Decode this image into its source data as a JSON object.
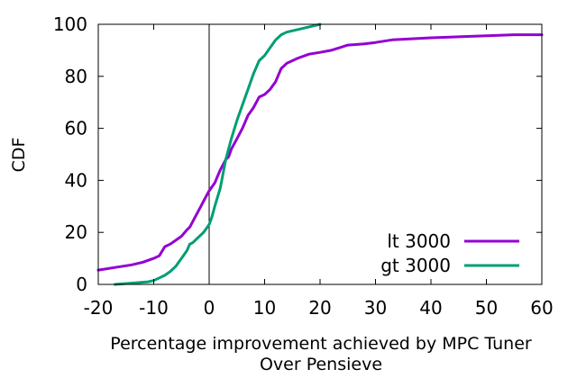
{
  "chart_data": {
    "type": "line",
    "xlabel": "Percentage improvement achieved by MPC Tuner",
    "xlabel2": "Over Pensieve",
    "ylabel": "CDF",
    "xlim": [
      -20,
      60
    ],
    "ylim": [
      0,
      100
    ],
    "xticks": [
      -20,
      -10,
      0,
      10,
      20,
      30,
      40,
      50,
      60
    ],
    "xtick_labels": [
      "-20",
      "-10",
      "0",
      "10",
      "20",
      "30",
      "40",
      "50",
      "60"
    ],
    "yticks": [
      0,
      20,
      40,
      60,
      80,
      100
    ],
    "ytick_labels": [
      "0",
      "20",
      "40",
      "60",
      "80",
      "100"
    ],
    "grid": false,
    "legend_position": "bottom-right",
    "reference_line_x": 0,
    "series": [
      {
        "name": "lt 3000",
        "color": "#9400d3",
        "x": [
          -20,
          -17,
          -14,
          -12,
          -10,
          -9,
          -8,
          -7,
          -6,
          -5,
          -4,
          -3.5,
          -3,
          -2,
          -1.5,
          -1,
          -0.5,
          0,
          1,
          2,
          3,
          3.5,
          4,
          5,
          6,
          7,
          8,
          9,
          10,
          11,
          12,
          13,
          14,
          16,
          18,
          20,
          22,
          25,
          28,
          30,
          33,
          40,
          50,
          55,
          60
        ],
        "y": [
          5.5,
          6.5,
          7.5,
          8.5,
          10,
          11,
          14.5,
          15.5,
          17,
          18.5,
          21,
          22,
          24,
          28,
          30,
          32,
          34,
          36,
          39,
          44,
          48,
          49,
          52,
          56,
          60,
          65,
          68,
          72,
          73,
          75,
          78,
          83,
          85,
          87,
          88.5,
          89.2,
          90,
          92,
          92.5,
          93,
          94,
          94.8,
          95.6,
          96,
          96
        ]
      },
      {
        "name": "gt 3000",
        "color": "#009e73",
        "x": [
          -17,
          -14,
          -11,
          -10,
          -9,
          -8,
          -7,
          -6,
          -5.5,
          -5,
          -4,
          -3.5,
          -3,
          -2,
          -1,
          0,
          0.5,
          1,
          2,
          3,
          4,
          5,
          6,
          7,
          8,
          9,
          10,
          11,
          12,
          13,
          14,
          16,
          18,
          20
        ],
        "y": [
          0,
          0.5,
          1,
          1.5,
          2.5,
          3.5,
          5,
          7,
          8.5,
          10,
          13,
          15.5,
          16,
          18,
          20,
          23,
          26,
          30,
          37,
          48,
          56,
          63,
          69,
          75,
          81,
          86,
          88,
          91,
          94,
          96,
          97,
          98,
          99,
          100
        ]
      }
    ]
  }
}
